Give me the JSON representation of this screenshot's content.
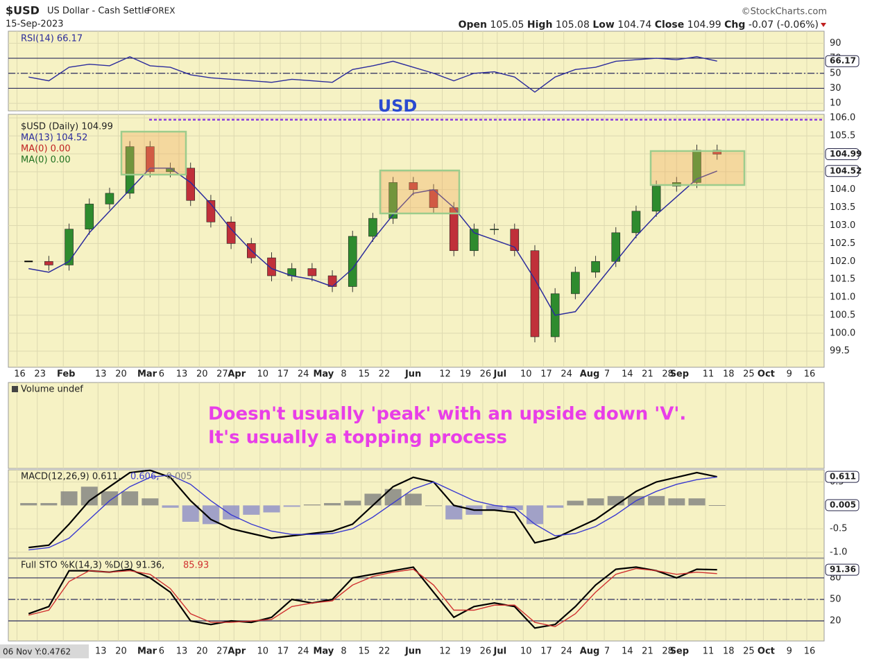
{
  "header": {
    "symbol": "$USD",
    "name": "US Dollar - Cash Settle",
    "exchange": "FOREX",
    "date": "15-Sep-2023",
    "source": "©StockCharts.com",
    "open_label": "Open",
    "open": "105.05",
    "high_label": "High",
    "high": "105.08",
    "low_label": "Low",
    "low": "104.74",
    "close_label": "Close",
    "close": "104.99",
    "chg_label": "Chg",
    "chg": "-0.07 (-0.06%)"
  },
  "xticks": [
    {
      "value": "2023-01-16",
      "label": "16"
    },
    {
      "value": "2023-01-23",
      "label": "23"
    },
    {
      "value": "2023-02-01",
      "label": "Feb"
    },
    {
      "value": "2023-02-13",
      "label": "13"
    },
    {
      "value": "2023-02-20",
      "label": "20"
    },
    {
      "value": "2023-03-01",
      "label": "Mar"
    },
    {
      "value": "2023-03-06",
      "label": "6"
    },
    {
      "value": "2023-03-13",
      "label": "13"
    },
    {
      "value": "2023-03-20",
      "label": "20"
    },
    {
      "value": "2023-03-27",
      "label": "27"
    },
    {
      "value": "2023-04-01",
      "label": "Apr"
    },
    {
      "value": "2023-04-10",
      "label": "10"
    },
    {
      "value": "2023-04-17",
      "label": "17"
    },
    {
      "value": "2023-04-24",
      "label": "24"
    },
    {
      "value": "2023-05-01",
      "label": "May"
    },
    {
      "value": "2023-05-08",
      "label": "8"
    },
    {
      "value": "2023-05-15",
      "label": "15"
    },
    {
      "value": "2023-05-22",
      "label": "22"
    },
    {
      "value": "2023-06-01",
      "label": "Jun"
    },
    {
      "value": "2023-06-12",
      "label": "12"
    },
    {
      "value": "2023-06-19",
      "label": "19"
    },
    {
      "value": "2023-06-26",
      "label": "26"
    },
    {
      "value": "2023-07-01",
      "label": "Jul"
    },
    {
      "value": "2023-07-10",
      "label": "10"
    },
    {
      "value": "2023-07-17",
      "label": "17"
    },
    {
      "value": "2023-07-24",
      "label": "24"
    },
    {
      "value": "2023-08-01",
      "label": "Aug"
    },
    {
      "value": "2023-08-07",
      "label": "7"
    },
    {
      "value": "2023-08-14",
      "label": "14"
    },
    {
      "value": "2023-08-21",
      "label": "21"
    },
    {
      "value": "2023-08-28",
      "label": "28"
    },
    {
      "value": "2023-09-01",
      "label": "Sep"
    },
    {
      "value": "2023-09-11",
      "label": "11"
    },
    {
      "value": "2023-09-18",
      "label": "18"
    },
    {
      "value": "2023-09-25",
      "label": "25"
    },
    {
      "value": "2023-10-01",
      "label": "Oct"
    },
    {
      "value": "2023-10-09",
      "label": "9"
    },
    {
      "value": "2023-10-16",
      "label": "16"
    }
  ],
  "xlim": [
    "2023-01-13",
    "2023-10-22"
  ],
  "cursor_readout": "06 Nov Y:0.4762",
  "chart_data": [
    {
      "type": "line",
      "ylim": [
        0,
        106
      ],
      "yticks": [
        10,
        30,
        50,
        70,
        90
      ],
      "levels": [
        30,
        50,
        70
      ],
      "x": [
        "2023-01-20",
        "2023-01-27",
        "2023-02-03",
        "2023-02-10",
        "2023-02-17",
        "2023-02-24",
        "2023-03-03",
        "2023-03-10",
        "2023-03-17",
        "2023-03-24",
        "2023-03-31",
        "2023-04-07",
        "2023-04-14",
        "2023-04-21",
        "2023-04-28",
        "2023-05-05",
        "2023-05-12",
        "2023-05-19",
        "2023-05-26",
        "2023-06-02",
        "2023-06-09",
        "2023-06-16",
        "2023-06-23",
        "2023-06-30",
        "2023-07-07",
        "2023-07-14",
        "2023-07-21",
        "2023-07-28",
        "2023-08-04",
        "2023-08-11",
        "2023-08-18",
        "2023-08-25",
        "2023-09-01",
        "2023-09-08",
        "2023-09-15"
      ],
      "series": [
        {
          "name": "RSI(14) 66.17",
          "color": "#2b2b9c",
          "values": [
            45,
            40,
            58,
            62,
            60,
            72,
            60,
            58,
            48,
            44,
            42,
            40,
            38,
            42,
            40,
            38,
            55,
            60,
            66,
            58,
            50,
            40,
            50,
            52,
            45,
            25,
            45,
            55,
            58,
            66,
            68,
            70,
            68,
            72,
            66.17
          ]
        }
      ]
    },
    {
      "type": "candlestick",
      "ylim": [
        99.05,
        106.1
      ],
      "yticks": [
        99.5,
        {
          "value": 100,
          "label": "100.0"
        },
        100.5,
        {
          "value": 101,
          "label": "101.0"
        },
        101.5,
        {
          "value": 102,
          "label": "102.0"
        },
        102.5,
        {
          "value": 103,
          "label": "103.0"
        },
        103.5,
        {
          "value": 104,
          "label": "104.0"
        },
        104.5,
        {
          "value": 105,
          "label": "105.0"
        },
        105.5,
        {
          "value": 106,
          "label": "106.0"
        }
      ],
      "annotation": "USD",
      "resistance": 105.95,
      "x": [
        "2023-01-20",
        "2023-01-27",
        "2023-02-03",
        "2023-02-10",
        "2023-02-17",
        "2023-02-24",
        "2023-03-03",
        "2023-03-10",
        "2023-03-17",
        "2023-03-24",
        "2023-03-31",
        "2023-04-07",
        "2023-04-14",
        "2023-04-21",
        "2023-04-28",
        "2023-05-05",
        "2023-05-12",
        "2023-05-19",
        "2023-05-26",
        "2023-06-02",
        "2023-06-09",
        "2023-06-16",
        "2023-06-23",
        "2023-06-30",
        "2023-07-07",
        "2023-07-14",
        "2023-07-21",
        "2023-07-28",
        "2023-08-04",
        "2023-08-11",
        "2023-08-18",
        "2023-08-25",
        "2023-09-01",
        "2023-09-08",
        "2023-09-15"
      ],
      "series": [
        {
          "name": "$USD (Daily) 104.99",
          "color": "#000000",
          "values": [
            102.0,
            101.9,
            102.9,
            103.6,
            103.9,
            105.2,
            104.5,
            104.6,
            103.7,
            103.1,
            102.5,
            102.1,
            101.6,
            101.8,
            101.6,
            101.3,
            102.7,
            103.2,
            104.2,
            104.0,
            103.5,
            102.3,
            102.9,
            102.9,
            102.3,
            99.9,
            101.1,
            101.7,
            102.0,
            102.8,
            103.4,
            104.1,
            104.2,
            105.1,
            104.99
          ]
        },
        {
          "name": "MA(13) 104.52",
          "color": "#2b2b9c",
          "values": [
            101.8,
            101.7,
            102.0,
            102.8,
            103.4,
            104.0,
            104.6,
            104.6,
            104.2,
            103.6,
            102.9,
            102.3,
            101.8,
            101.6,
            101.5,
            101.3,
            101.8,
            102.6,
            103.3,
            103.9,
            104.0,
            103.5,
            102.8,
            102.6,
            102.4,
            101.5,
            100.5,
            100.6,
            101.3,
            102.0,
            102.7,
            103.3,
            103.8,
            104.3,
            104.52
          ]
        }
      ],
      "extra_legend": [
        {
          "name": "MA(0) 0.00",
          "color": "#c02020"
        },
        {
          "name": "MA(0) 0.00",
          "color": "#207020"
        }
      ]
    },
    {
      "type": "annotation",
      "legend": "Volume undef",
      "notes": [
        "Doesn't usually 'peak' with an upside down 'V'.",
        "It's usually a topping process"
      ]
    },
    {
      "type": "line",
      "ylim": [
        -1.12,
        0.76
      ],
      "yticks": [
        {
          "value": -1,
          "label": "-1.0"
        },
        -0.5,
        0.5
      ],
      "x": [
        "2023-01-20",
        "2023-01-27",
        "2023-02-03",
        "2023-02-10",
        "2023-02-17",
        "2023-02-24",
        "2023-03-03",
        "2023-03-10",
        "2023-03-17",
        "2023-03-24",
        "2023-03-31",
        "2023-04-07",
        "2023-04-14",
        "2023-04-21",
        "2023-04-28",
        "2023-05-05",
        "2023-05-12",
        "2023-05-19",
        "2023-05-26",
        "2023-06-02",
        "2023-06-09",
        "2023-06-16",
        "2023-06-23",
        "2023-06-30",
        "2023-07-07",
        "2023-07-14",
        "2023-07-21",
        "2023-07-28",
        "2023-08-04",
        "2023-08-11",
        "2023-08-18",
        "2023-08-25",
        "2023-09-01",
        "2023-09-08",
        "2023-09-15"
      ],
      "series": [
        {
          "name": "MACD(12,26,9) 0.611,",
          "color": "#000000",
          "values": [
            -0.9,
            -0.85,
            -0.4,
            0.1,
            0.4,
            0.7,
            0.75,
            0.6,
            0.1,
            -0.3,
            -0.5,
            -0.6,
            -0.7,
            -0.65,
            -0.6,
            -0.55,
            -0.4,
            0.0,
            0.4,
            0.6,
            0.5,
            0.0,
            -0.1,
            -0.1,
            -0.15,
            -0.8,
            -0.7,
            -0.5,
            -0.3,
            0.0,
            0.3,
            0.5,
            0.6,
            0.7,
            0.611
          ]
        },
        {
          "name": "0.606,",
          "color": "#3a3ad0",
          "values": [
            -0.95,
            -0.9,
            -0.7,
            -0.3,
            0.1,
            0.4,
            0.6,
            0.65,
            0.45,
            0.1,
            -0.2,
            -0.4,
            -0.55,
            -0.62,
            -0.62,
            -0.6,
            -0.5,
            -0.25,
            0.05,
            0.35,
            0.5,
            0.3,
            0.1,
            0.0,
            -0.05,
            -0.4,
            -0.65,
            -0.6,
            -0.45,
            -0.2,
            0.1,
            0.3,
            0.45,
            0.55,
            0.606
          ]
        },
        {
          "name": "0.005",
          "color": "#808080",
          "negative_color": "#8c8cc8",
          "kind": "bar",
          "values": [
            0.05,
            0.05,
            0.3,
            0.4,
            0.3,
            0.3,
            0.15,
            -0.05,
            -0.35,
            -0.4,
            -0.3,
            -0.2,
            -0.15,
            -0.03,
            0.02,
            0.05,
            0.1,
            0.25,
            0.35,
            0.25,
            0.0,
            -0.3,
            -0.2,
            -0.1,
            -0.1,
            -0.4,
            -0.05,
            0.1,
            0.15,
            0.2,
            0.2,
            0.2,
            0.15,
            0.15,
            0.005
          ]
        }
      ]
    },
    {
      "type": "line",
      "ylim": [
        -8,
        107
      ],
      "yticks": [
        20,
        50,
        80
      ],
      "levels": [
        20,
        50,
        80
      ],
      "x": [
        "2023-01-20",
        "2023-01-27",
        "2023-02-03",
        "2023-02-10",
        "2023-02-17",
        "2023-02-24",
        "2023-03-03",
        "2023-03-10",
        "2023-03-17",
        "2023-03-24",
        "2023-03-31",
        "2023-04-07",
        "2023-04-14",
        "2023-04-21",
        "2023-04-28",
        "2023-05-05",
        "2023-05-12",
        "2023-05-19",
        "2023-05-26",
        "2023-06-02",
        "2023-06-09",
        "2023-06-16",
        "2023-06-23",
        "2023-06-30",
        "2023-07-07",
        "2023-07-14",
        "2023-07-21",
        "2023-07-28",
        "2023-08-04",
        "2023-08-11",
        "2023-08-18",
        "2023-08-25",
        "2023-09-01",
        "2023-09-08",
        "2023-09-15"
      ],
      "series": [
        {
          "name": "Full STO %K(14,3) %D(3) 91.36,",
          "color": "#000000",
          "values": [
            30,
            40,
            90,
            90,
            88,
            92,
            80,
            60,
            20,
            15,
            20,
            18,
            25,
            50,
            45,
            50,
            80,
            85,
            90,
            95,
            60,
            25,
            40,
            45,
            40,
            10,
            15,
            40,
            70,
            92,
            95,
            90,
            80,
            92,
            91.36
          ]
        },
        {
          "name": "85.93",
          "color": "#d03030",
          "values": [
            28,
            35,
            75,
            90,
            88,
            90,
            85,
            65,
            30,
            18,
            18,
            20,
            22,
            40,
            45,
            48,
            70,
            82,
            88,
            92,
            70,
            35,
            35,
            42,
            42,
            18,
            12,
            30,
            60,
            85,
            93,
            90,
            85,
            88,
            85.93
          ]
        }
      ]
    }
  ]
}
